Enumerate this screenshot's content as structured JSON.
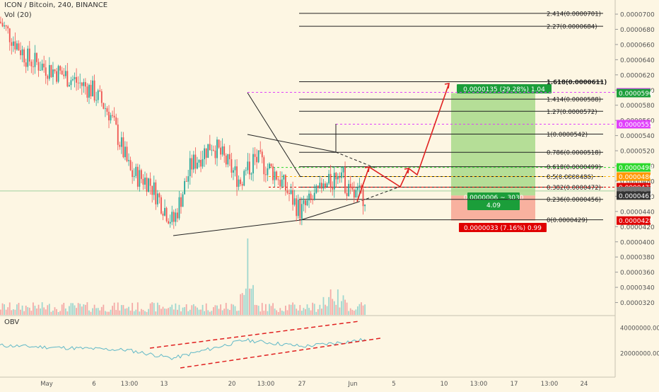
{
  "header": {
    "symbol_line": "ICON / Bitcoin, 240, BINANCE",
    "vol_label": "Vol (20)",
    "obv_label": "OBV"
  },
  "price_axis": {
    "ticks": [
      "0.0000700",
      "0.0000680",
      "0.0000660",
      "0.0000640",
      "0.0000620",
      "0.0000600",
      "0.0000580",
      "0.0000560",
      "0.0000540",
      "0.0000520",
      "0.0000500",
      "0.0000480",
      "0.0000460",
      "0.0000440",
      "0.0000420",
      "0.0000400",
      "0.0000380",
      "0.0000360",
      "0.0000340",
      "0.0000320"
    ],
    "badges": [
      {
        "text": "0.0000597",
        "value": 5.97e-05,
        "color": "#e040fb"
      },
      {
        "text": "0.0000596",
        "value": 5.96e-05,
        "color": "#1b9e3a"
      },
      {
        "text": "0.0000555",
        "value": 5.55e-05,
        "color": "#e040fb"
      },
      {
        "text": "0.0000498",
        "value": 4.98e-05,
        "color": "#2bd82b"
      },
      {
        "text": "0.0000486",
        "value": 4.86e-05,
        "color": "#ff9800"
      },
      {
        "text": "0.0000472",
        "value": 4.72e-05,
        "color": "#e00000"
      },
      {
        "text": "0.0000467",
        "value": 4.67e-05,
        "color": "#777777"
      },
      {
        "text": "01:48:45",
        "value": 4.64e-05,
        "color": "#777777"
      },
      {
        "text": "0.0000461",
        "value": 4.61e-05,
        "color": "#333333"
      },
      {
        "text": "0.0000428",
        "value": 4.28e-05,
        "color": "#e00000"
      }
    ]
  },
  "obv_axis": {
    "ticks": [
      "40000000.0000",
      "20000000.0000"
    ]
  },
  "time_axis": {
    "labels": [
      "May",
      "6",
      "13:00",
      "13",
      "20",
      "13:00",
      "27",
      "Jun",
      "5",
      "10",
      "13:00",
      "17",
      "13:00",
      "24"
    ]
  },
  "fib_levels": [
    {
      "label": "2.414(0.0000701)",
      "value": 7.01e-05
    },
    {
      "label": "2.27(0.0000684)",
      "value": 6.84e-05
    },
    {
      "label": "1.618(0.0000611)",
      "value": 6.11e-05
    },
    {
      "label": "1.414(0.0000588)",
      "value": 5.88e-05
    },
    {
      "label": "1.27(0.0000572)",
      "value": 5.72e-05
    },
    {
      "label": "1(0.0000542)",
      "value": 5.42e-05
    },
    {
      "label": "0.786(0.0000518)",
      "value": 5.18e-05
    },
    {
      "label": "0.618(0.0000499)",
      "value": 4.99e-05
    },
    {
      "label": "0.5(0.0000486)",
      "value": 4.86e-05
    },
    {
      "label": "0.382(0.0000472)",
      "value": 4.72e-05
    },
    {
      "label": "0.236(0.0000456)",
      "value": 4.56e-05
    },
    {
      "label": "0(0.0000429)",
      "value": 4.29e-05
    }
  ],
  "position_labels": {
    "profit": "0.0000135 (29.28%) 1.04",
    "mid": "0.0000006 ~ 3030",
    "mid2": "4.09",
    "stop": "0.0000033 (7.16%) 0.99"
  },
  "colors": {
    "bull": "#26a69a",
    "bear": "#ef5350",
    "profit_zone": "#a8d98a",
    "stop_zone": "#f7a593",
    "arrow": "#e02020",
    "obv_line": "#5fb8c7"
  },
  "chart_data": {
    "type": "candlestick",
    "title": "ICON / Bitcoin, 240, BINANCE",
    "y_axis_range": [
      3.1e-05,
      7.1e-05
    ],
    "obv_range": [
      10000000,
      45000000
    ],
    "price_path": [
      {
        "x": "May",
        "close": 6.9e-05
      },
      {
        "x": "6",
        "close": 6.1e-05
      },
      {
        "x": "13",
        "close": 4.2e-05
      },
      {
        "x": "20",
        "close": 5.2e-05
      },
      {
        "x": "27",
        "close": 4.4e-05
      },
      {
        "x": "Jun",
        "close": 4.61e-05
      }
    ],
    "fib_retracement": {
      "low": 4.29e-05,
      "high": 5.42e-05
    },
    "long_position": {
      "entry": 4.61e-05,
      "target": 5.96e-05,
      "stop": 4.28e-05
    },
    "obv_current": 28000000
  }
}
